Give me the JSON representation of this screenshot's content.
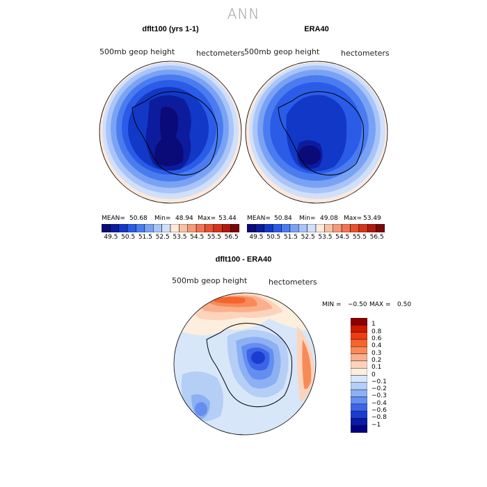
{
  "page_title": "ANN",
  "chart_data": [
    {
      "type": "heatmap",
      "title": "dflt100 (yrs 1-1)",
      "variable": "500mb geop height",
      "units": "hectometers",
      "stats": {
        "mean_label": "MEAN=",
        "mean": "50.68",
        "min_label": "Min=",
        "min": "48.94",
        "max_label": "Max=",
        "max": "53.44"
      },
      "colorbar_ticks": [
        "49.5",
        "50.5",
        "51.5",
        "52.5",
        "53.5",
        "54.5",
        "55.5",
        "56.5"
      ],
      "levels": [
        49.5,
        50.5,
        51.5,
        52.5,
        53.5,
        54.5,
        55.5,
        56.5
      ]
    },
    {
      "type": "heatmap",
      "title": "ERA40",
      "variable": "500mb geop height",
      "units": "hectometers",
      "stats": {
        "mean_label": "MEAN=",
        "mean": "50.84",
        "min_label": "Min=",
        "min": "49.08",
        "max_label": "Max=",
        "max": "53.49"
      },
      "colorbar_ticks": [
        "49.5",
        "50.5",
        "51.5",
        "52.5",
        "53.5",
        "54.5",
        "55.5",
        "56.5"
      ],
      "levels": [
        49.5,
        50.5,
        51.5,
        52.5,
        53.5,
        54.5,
        55.5,
        56.5
      ]
    },
    {
      "type": "heatmap",
      "title": "dflt100 - ERA40",
      "variable": "500mb geop height",
      "units": "hectometers",
      "range_text": {
        "min_label": "MIN =",
        "min": "−0.50",
        "max_label": "MAX =",
        "max": "0.50"
      },
      "colorbar_ticks": [
        "1",
        "0.8",
        "0.6",
        "0.4",
        "0.3",
        "0.2",
        "0.1",
        "0",
        "−0.1",
        "−0.2",
        "−0.3",
        "−0.4",
        "−0.6",
        "−0.8",
        "−1"
      ],
      "levels": [
        1,
        0.8,
        0.6,
        0.4,
        0.3,
        0.2,
        0.1,
        0,
        -0.1,
        -0.2,
        -0.3,
        -0.4,
        -0.6,
        -0.8,
        -1
      ]
    }
  ],
  "colors": {
    "absolute_scale": [
      "#0a0a78",
      "#0c1c9c",
      "#1238c8",
      "#2a5ce8",
      "#4a7cf0",
      "#7aa2f4",
      "#a8c4f8",
      "#d0e0fa",
      "#fde8dc",
      "#f8c0a4",
      "#f49a78",
      "#f07452",
      "#e8502e",
      "#d4341a",
      "#b01a0e",
      "#7a0808"
    ],
    "diff_scale": [
      "#8b0000",
      "#cc1a00",
      "#f03c14",
      "#f6642e",
      "#f88a5a",
      "#fab08c",
      "#fcd4bc",
      "#fdeede",
      "#d8e6fa",
      "#b4cef6",
      "#8cb0f2",
      "#648ef0",
      "#3c64e6",
      "#1c3cd0",
      "#0a1aa8",
      "#000080"
    ]
  }
}
